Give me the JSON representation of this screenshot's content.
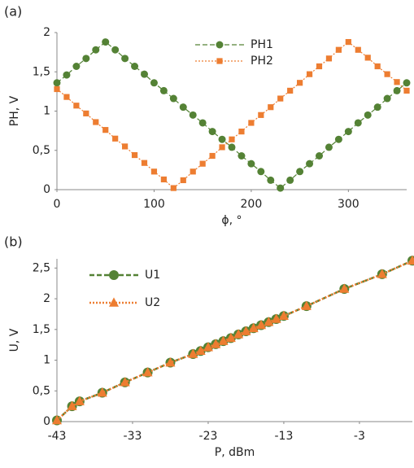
{
  "chart_data": [
    {
      "type": "line",
      "panel_label": "(a)",
      "x_label": "ϕ, °",
      "y_label": "PH, V",
      "x": [
        0,
        10,
        20,
        30,
        40,
        50,
        60,
        70,
        80,
        90,
        100,
        110,
        120,
        130,
        140,
        150,
        160,
        170,
        180,
        190,
        200,
        210,
        220,
        230,
        240,
        250,
        260,
        270,
        280,
        290,
        300,
        310,
        320,
        330,
        340,
        350,
        360
      ],
      "series": [
        {
          "name": "PH1",
          "color": "#548235",
          "line_style": "dashed",
          "marker": "circle",
          "values": [
            1.36,
            1.46,
            1.57,
            1.67,
            1.78,
            1.88,
            1.78,
            1.67,
            1.57,
            1.47,
            1.36,
            1.26,
            1.16,
            1.05,
            0.95,
            0.85,
            0.74,
            0.64,
            0.54,
            0.43,
            0.33,
            0.23,
            0.12,
            0.02,
            0.12,
            0.23,
            0.33,
            0.43,
            0.54,
            0.64,
            0.74,
            0.85,
            0.95,
            1.05,
            1.16,
            1.26,
            1.36
          ]
        },
        {
          "name": "PH2",
          "color": "#ed7d31",
          "line_style": "dotted",
          "marker": "square",
          "values": [
            1.28,
            1.18,
            1.07,
            0.97,
            0.86,
            0.76,
            0.65,
            0.55,
            0.44,
            0.34,
            0.23,
            0.13,
            0.02,
            0.12,
            0.23,
            0.33,
            0.43,
            0.54,
            0.64,
            0.74,
            0.85,
            0.95,
            1.05,
            1.16,
            1.26,
            1.36,
            1.47,
            1.57,
            1.67,
            1.78,
            1.88,
            1.78,
            1.68,
            1.57,
            1.47,
            1.37,
            1.26
          ]
        }
      ],
      "xlim": [
        0,
        360
      ],
      "xticks": [
        0,
        100,
        200,
        300
      ],
      "ylim": [
        0,
        2
      ],
      "yticks": [
        0,
        {
          "value": 0.5,
          "label": "0,5"
        },
        1,
        {
          "value": 1.5,
          "label": "1,5"
        },
        2
      ]
    },
    {
      "type": "line",
      "panel_label": "(b)",
      "x_label": "P, dBm",
      "y_label": "U, V",
      "x": [
        -43,
        -41,
        -40,
        -37,
        -34,
        -31,
        -28,
        -25,
        -24,
        -23,
        -22,
        -21,
        -20,
        -19,
        -18,
        -17,
        -16,
        -15,
        -14,
        -13,
        -10,
        -5,
        0,
        4
      ],
      "series": [
        {
          "name": "U1",
          "color": "#548235",
          "line_style": "dashed",
          "marker": "circle",
          "values": [
            0.02,
            0.25,
            0.33,
            0.47,
            0.64,
            0.8,
            0.96,
            1.1,
            1.15,
            1.21,
            1.26,
            1.31,
            1.36,
            1.42,
            1.47,
            1.52,
            1.57,
            1.62,
            1.67,
            1.72,
            1.88,
            2.16,
            2.4,
            2.62
          ]
        },
        {
          "name": "U2",
          "color": "#ed7d31",
          "line_style": "dotted",
          "marker": "triangle",
          "values": [
            0.02,
            0.25,
            0.33,
            0.47,
            0.64,
            0.8,
            0.96,
            1.1,
            1.15,
            1.21,
            1.26,
            1.31,
            1.36,
            1.42,
            1.47,
            1.52,
            1.57,
            1.62,
            1.67,
            1.72,
            1.88,
            2.16,
            2.4,
            2.62
          ]
        }
      ],
      "xlim": [
        -43,
        4
      ],
      "xticks": [
        -43,
        -33,
        -23,
        -13,
        -3
      ],
      "ylim": [
        0,
        2.65
      ],
      "yticks": [
        0,
        {
          "value": 0.5,
          "label": "0,5"
        },
        1,
        {
          "value": 1.5,
          "label": "1,5"
        },
        2,
        {
          "value": 2.5,
          "label": "2,5"
        }
      ]
    }
  ]
}
